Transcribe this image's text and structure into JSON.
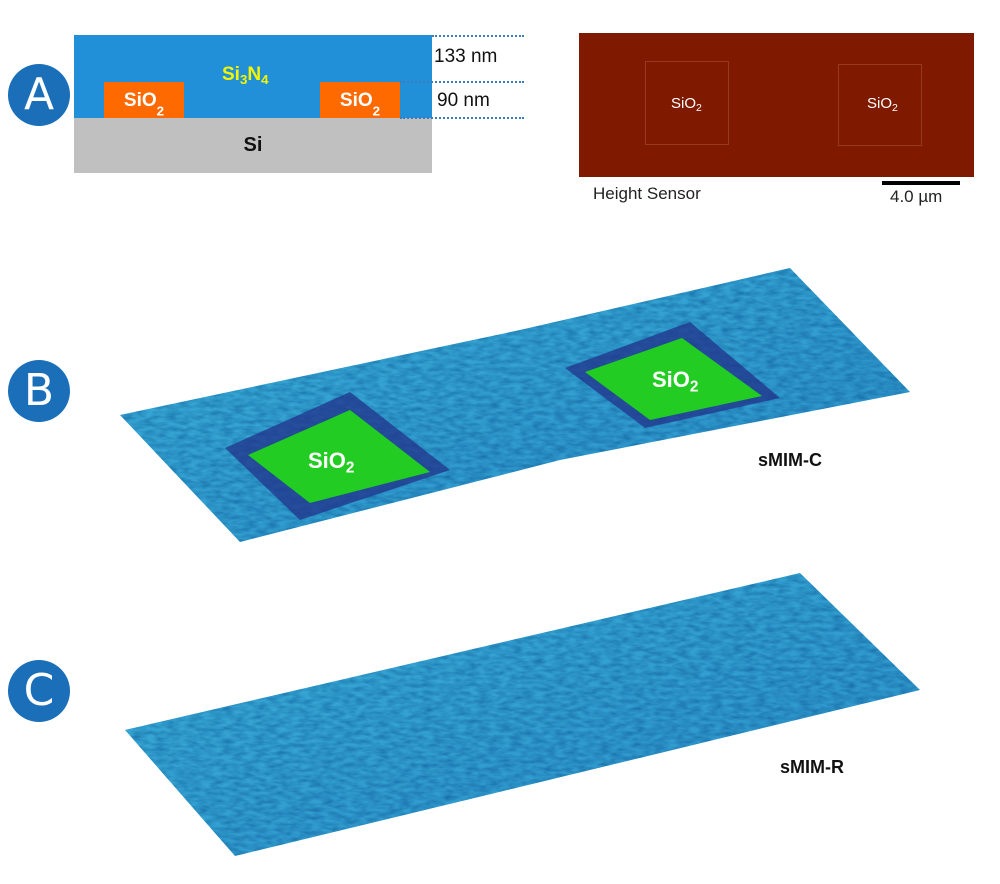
{
  "panels": {
    "a": {
      "badge": "A",
      "layers": {
        "top": "Si",
        "top_sub1": "3",
        "top_mid": "N",
        "top_sub2": "4",
        "substrate": "Si"
      },
      "pads": [
        {
          "main": "SiO",
          "sub": "2"
        },
        {
          "main": "SiO",
          "sub": "2"
        }
      ],
      "dims": [
        "133 nm",
        "90 nm"
      ],
      "afm": {
        "labels": [
          {
            "main": "SiO",
            "sub": "2"
          },
          {
            "main": "SiO",
            "sub": "2"
          }
        ],
        "caption": "Height Sensor",
        "scalebar": "4.0 µm"
      }
    },
    "b": {
      "badge": "B",
      "labels": [
        {
          "main": "SiO",
          "sub": "2"
        },
        {
          "main": "SiO",
          "sub": "2"
        }
      ],
      "title": "sMIM-C"
    },
    "c": {
      "badge": "C",
      "title": "sMIM-R"
    }
  },
  "colors": {
    "badge": "#1a6fb8",
    "si3n4": "#2190d8",
    "sio2": "#ff6a00",
    "si": "#c0c0c0",
    "afm": "#7f1a00",
    "surface": "#2a9fcf",
    "oxide": "#22cc22"
  }
}
